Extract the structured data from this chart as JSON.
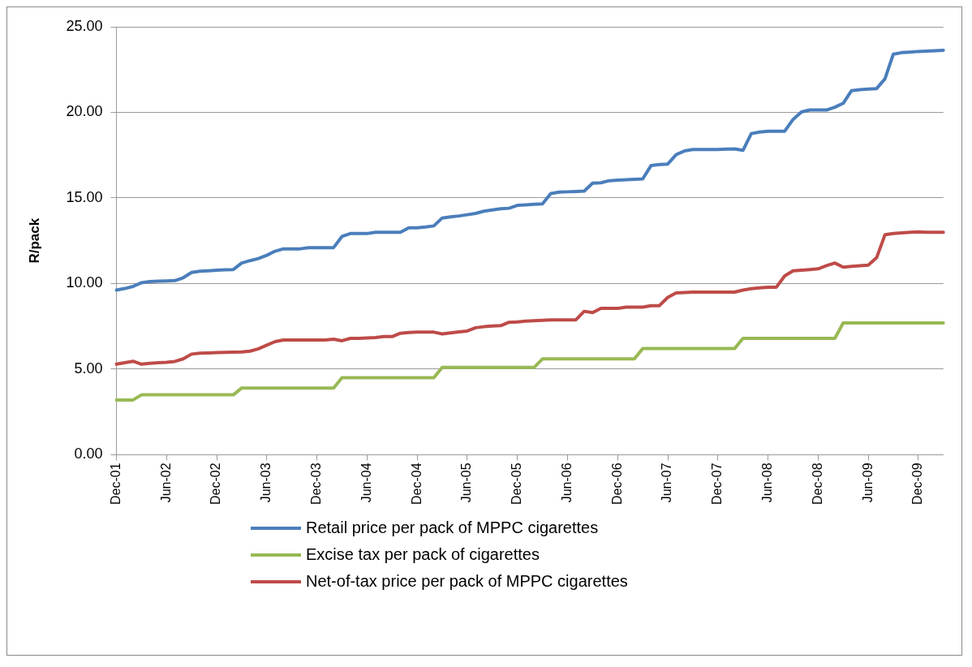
{
  "chart_data": {
    "type": "line",
    "ylabel": "R/pack",
    "categories": [
      "Dec-01",
      null,
      null,
      null,
      null,
      null,
      "Jun-02",
      null,
      null,
      null,
      null,
      null,
      "Dec-02",
      null,
      null,
      null,
      null,
      null,
      "Jun-03",
      null,
      null,
      null,
      null,
      null,
      "Dec-03",
      null,
      null,
      null,
      null,
      null,
      "Jun-04",
      null,
      null,
      null,
      null,
      null,
      "Dec-04",
      null,
      null,
      null,
      null,
      null,
      "Jun-05",
      null,
      null,
      null,
      null,
      null,
      "Dec-05",
      null,
      null,
      null,
      null,
      null,
      "Jun-06",
      null,
      null,
      null,
      null,
      null,
      "Dec-06",
      null,
      null,
      null,
      null,
      null,
      "Jun-07",
      null,
      null,
      null,
      null,
      null,
      "Dec-07",
      null,
      null,
      null,
      null,
      null,
      "Jun-08",
      null,
      null,
      null,
      null,
      null,
      "Dec-08",
      null,
      null,
      null,
      null,
      null,
      "Jun-09",
      null,
      null,
      null,
      null,
      null,
      "Dec-09",
      null,
      null,
      null
    ],
    "series": [
      {
        "name": "Retail price per pack of MPPC cigarettes",
        "color": "#4a7ebb",
        "values": [
          9.62,
          9.71,
          9.83,
          10.05,
          10.12,
          10.14,
          10.15,
          10.17,
          10.34,
          10.65,
          10.72,
          10.75,
          10.78,
          10.8,
          10.82,
          11.2,
          11.34,
          11.46,
          11.65,
          11.89,
          12.03,
          12.03,
          12.03,
          12.1,
          12.1,
          12.1,
          12.1,
          12.75,
          12.92,
          12.92,
          12.92,
          13.0,
          13.0,
          13.0,
          13.0,
          13.26,
          13.26,
          13.3,
          13.37,
          13.83,
          13.9,
          13.95,
          14.02,
          14.1,
          14.23,
          14.3,
          14.37,
          14.4,
          14.57,
          14.6,
          14.63,
          14.66,
          15.26,
          15.34,
          15.36,
          15.38,
          15.4,
          15.86,
          15.89,
          16.01,
          16.04,
          16.06,
          16.09,
          16.11,
          16.89,
          16.95,
          16.98,
          17.53,
          17.75,
          17.83,
          17.83,
          17.83,
          17.83,
          17.85,
          17.87,
          17.78,
          18.76,
          18.85,
          18.9,
          18.9,
          18.9,
          19.59,
          20.02,
          20.14,
          20.14,
          20.14,
          20.3,
          20.53,
          21.27,
          21.33,
          21.36,
          21.39,
          21.96,
          23.4,
          23.49,
          23.52,
          23.56,
          23.58,
          23.6,
          23.63
        ]
      },
      {
        "name": "Excise tax per pack of cigarettes",
        "color": "#98b954",
        "values": [
          3.2,
          3.2,
          3.2,
          3.5,
          3.5,
          3.5,
          3.5,
          3.5,
          3.5,
          3.5,
          3.5,
          3.5,
          3.5,
          3.5,
          3.5,
          3.9,
          3.9,
          3.9,
          3.9,
          3.9,
          3.9,
          3.9,
          3.9,
          3.9,
          3.9,
          3.9,
          3.9,
          4.5,
          4.5,
          4.5,
          4.5,
          4.5,
          4.5,
          4.5,
          4.5,
          4.5,
          4.5,
          4.5,
          4.5,
          5.1,
          5.1,
          5.1,
          5.1,
          5.1,
          5.1,
          5.1,
          5.1,
          5.1,
          5.1,
          5.1,
          5.1,
          5.6,
          5.6,
          5.6,
          5.6,
          5.6,
          5.6,
          5.6,
          5.6,
          5.6,
          5.6,
          5.6,
          5.6,
          6.2,
          6.2,
          6.2,
          6.2,
          6.2,
          6.2,
          6.2,
          6.2,
          6.2,
          6.2,
          6.2,
          6.2,
          6.8,
          6.8,
          6.8,
          6.8,
          6.8,
          6.8,
          6.8,
          6.8,
          6.8,
          6.8,
          6.8,
          6.8,
          7.7,
          7.7,
          7.7,
          7.7,
          7.7,
          7.7,
          7.7,
          7.7,
          7.7,
          7.7,
          7.7,
          7.7,
          7.7
        ]
      },
      {
        "name": "Net-of-tax price per pack of MPPC cigarettes",
        "color": "#be4b48",
        "values": [
          5.29,
          5.38,
          5.46,
          5.29,
          5.34,
          5.38,
          5.4,
          5.45,
          5.6,
          5.88,
          5.93,
          5.95,
          5.97,
          5.98,
          5.99,
          6.0,
          6.05,
          6.19,
          6.4,
          6.61,
          6.7,
          6.7,
          6.7,
          6.7,
          6.7,
          6.7,
          6.75,
          6.66,
          6.8,
          6.8,
          6.82,
          6.85,
          6.9,
          6.9,
          7.1,
          7.14,
          7.16,
          7.16,
          7.16,
          7.06,
          7.12,
          7.18,
          7.23,
          7.42,
          7.48,
          7.52,
          7.54,
          7.74,
          7.76,
          7.8,
          7.83,
          7.85,
          7.88,
          7.88,
          7.88,
          7.88,
          8.38,
          8.3,
          8.55,
          8.55,
          8.55,
          8.62,
          8.62,
          8.62,
          8.71,
          8.71,
          9.19,
          9.45,
          9.48,
          9.5,
          9.5,
          9.5,
          9.5,
          9.5,
          9.5,
          9.62,
          9.7,
          9.75,
          9.79,
          9.79,
          10.45,
          10.74,
          10.78,
          10.82,
          10.86,
          11.05,
          11.2,
          10.96,
          11.0,
          11.04,
          11.08,
          11.51,
          12.85,
          12.92,
          12.96,
          13.0,
          13.02,
          13.0,
          13.0,
          13.0
        ]
      }
    ],
    "ylim": [
      0,
      25
    ],
    "yticks": [
      {
        "value": 0,
        "label": "0.00"
      },
      {
        "value": 5,
        "label": "5.00"
      },
      {
        "value": 10,
        "label": "10.00"
      },
      {
        "value": 15,
        "label": "15.00"
      },
      {
        "value": 20,
        "label": "20.00"
      },
      {
        "value": 25,
        "label": "25.00"
      }
    ],
    "grid": "y",
    "legend": "bottom",
    "marker": "none",
    "line_style": "solid"
  }
}
